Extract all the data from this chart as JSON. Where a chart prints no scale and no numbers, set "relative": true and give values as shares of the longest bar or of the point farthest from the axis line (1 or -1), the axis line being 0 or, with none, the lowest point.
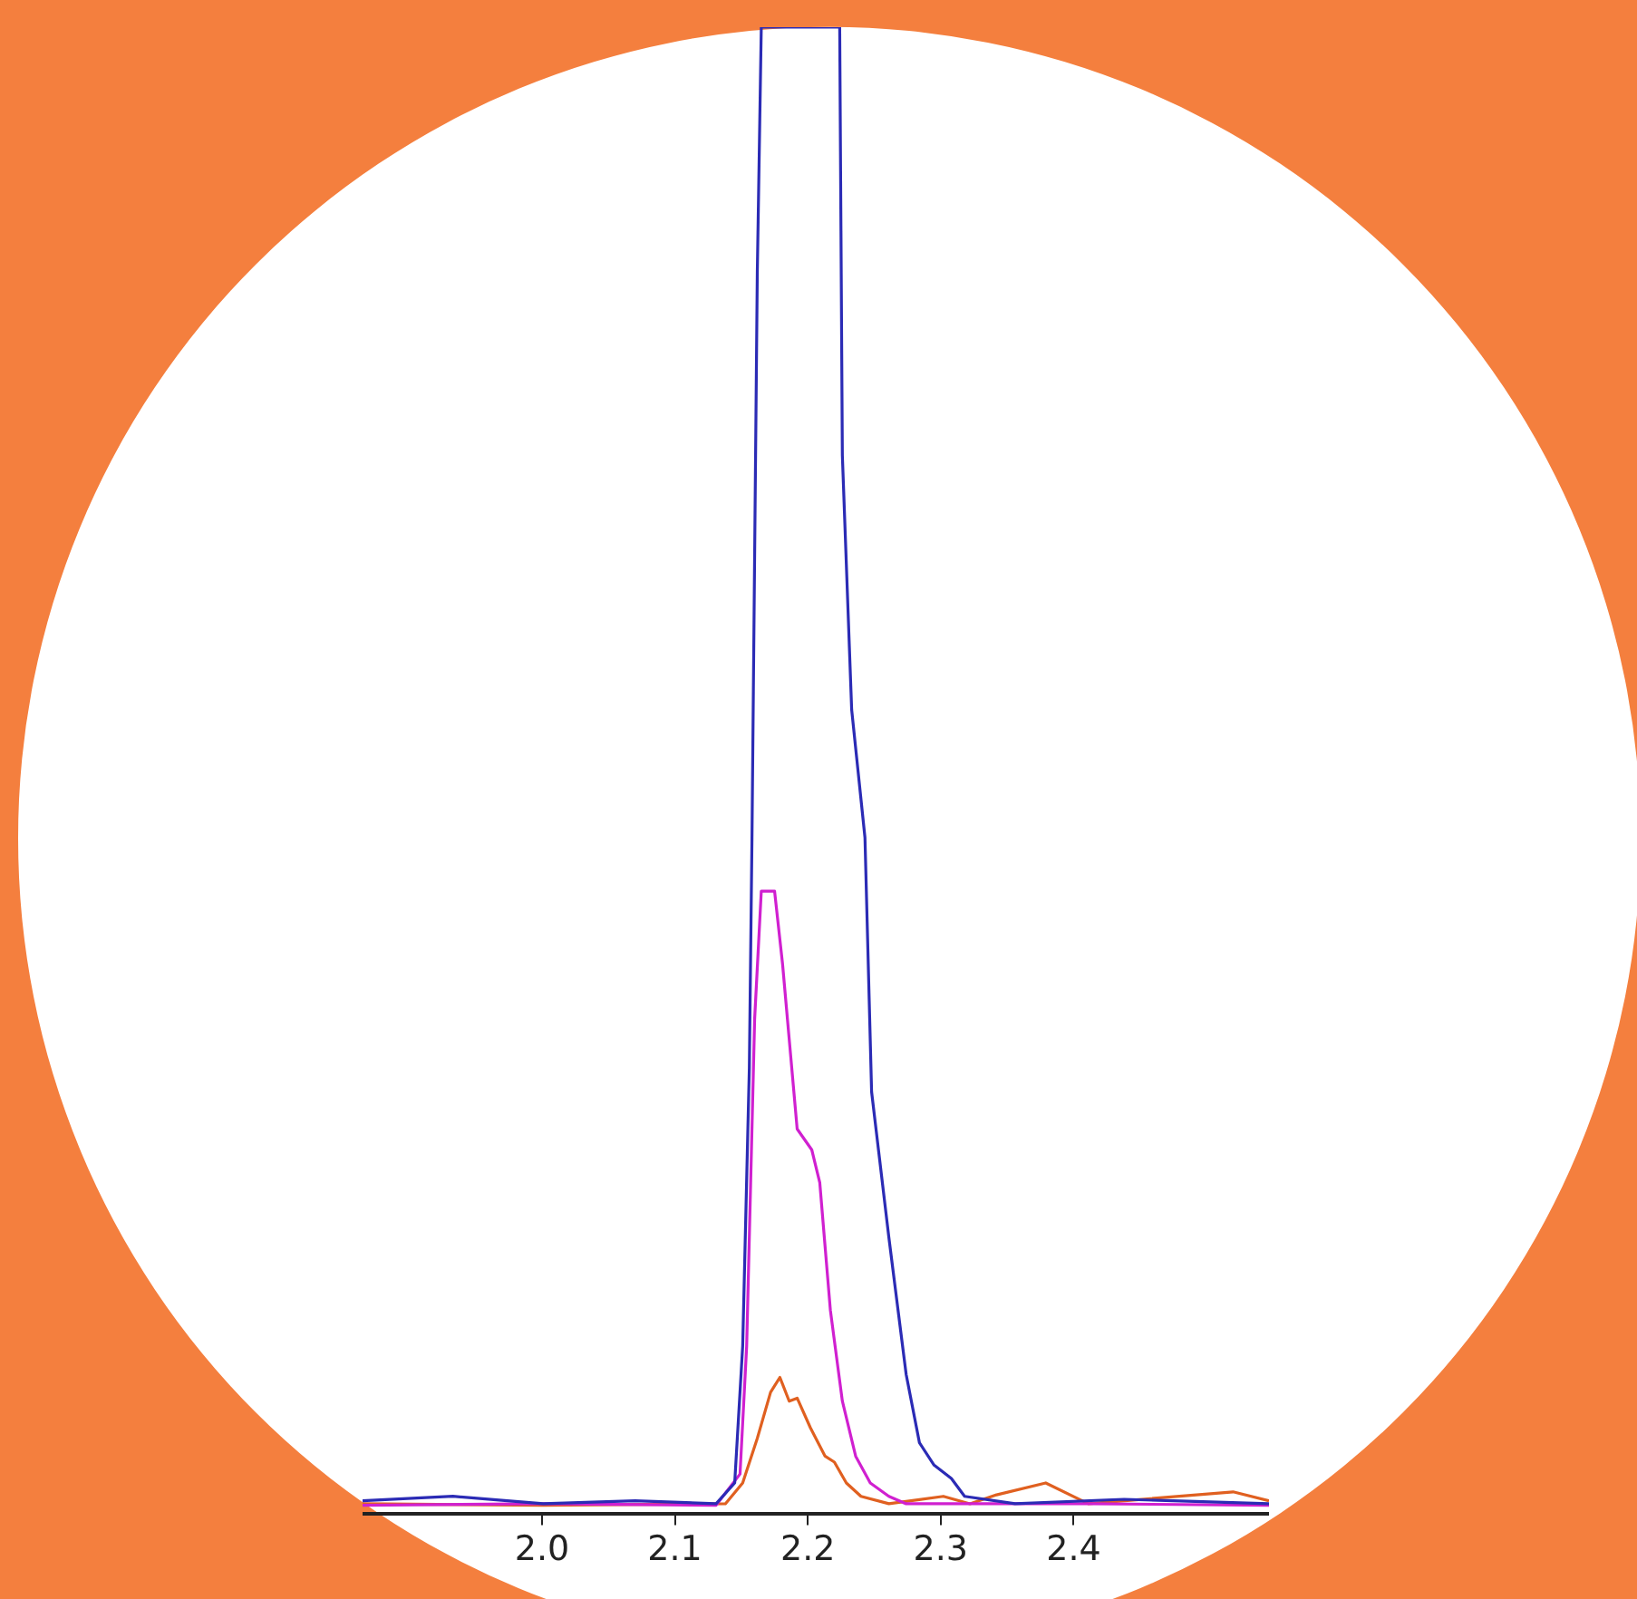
{
  "chart_data": {
    "type": "line",
    "relative": true,
    "xlim": [
      1.865,
      2.547
    ],
    "xticks": [
      {
        "value": 2.0,
        "label": "2.0"
      },
      {
        "value": 2.1,
        "label": "2.1"
      },
      {
        "value": 2.2,
        "label": "2.2"
      },
      {
        "value": 2.3,
        "label": "2.3"
      },
      {
        "value": 2.4,
        "label": "2.4"
      }
    ],
    "grid": false,
    "legend": false,
    "marker": "none",
    "line_style": "solid",
    "tick_labels": "x",
    "series": [
      {
        "color": "#2b2bb5",
        "x": [
          1.865,
          1.933,
          2.001,
          2.07,
          2.131,
          2.145,
          2.151,
          2.156,
          2.158,
          2.162,
          2.165,
          2.224,
          2.226,
          2.233,
          2.243,
          2.248,
          2.261,
          2.274,
          2.284,
          2.295,
          2.308,
          2.318,
          2.356,
          2.438,
          2.547
        ],
        "values": [
          0.009,
          0.012,
          0.007,
          0.009,
          0.007,
          0.021,
          0.113,
          0.3,
          0.455,
          0.835,
          1.0,
          1.0,
          0.712,
          0.541,
          0.455,
          0.284,
          0.186,
          0.094,
          0.048,
          0.033,
          0.024,
          0.012,
          0.007,
          0.01,
          0.007
        ]
      },
      {
        "color": "#d020d0",
        "x": [
          1.865,
          2.001,
          2.131,
          2.149,
          2.154,
          2.16,
          2.165,
          2.175,
          2.181,
          2.192,
          2.203,
          2.209,
          2.217,
          2.226,
          2.236,
          2.247,
          2.261,
          2.274,
          2.411,
          2.547
        ],
        "values": [
          0.006,
          0.007,
          0.006,
          0.027,
          0.113,
          0.333,
          0.419,
          0.419,
          0.37,
          0.259,
          0.245,
          0.223,
          0.137,
          0.076,
          0.039,
          0.021,
          0.012,
          0.007,
          0.007,
          0.006
        ]
      },
      {
        "color": "#e06020",
        "x": [
          1.865,
          2.001,
          2.138,
          2.151,
          2.162,
          2.172,
          2.179,
          2.186,
          2.192,
          2.202,
          2.213,
          2.22,
          2.229,
          2.24,
          2.261,
          2.302,
          2.322,
          2.342,
          2.379,
          2.411,
          2.52,
          2.547
        ],
        "values": [
          0.007,
          0.006,
          0.007,
          0.021,
          0.051,
          0.082,
          0.092,
          0.076,
          0.078,
          0.058,
          0.039,
          0.035,
          0.021,
          0.012,
          0.007,
          0.012,
          0.007,
          0.013,
          0.021,
          0.007,
          0.015,
          0.009
        ]
      }
    ]
  }
}
